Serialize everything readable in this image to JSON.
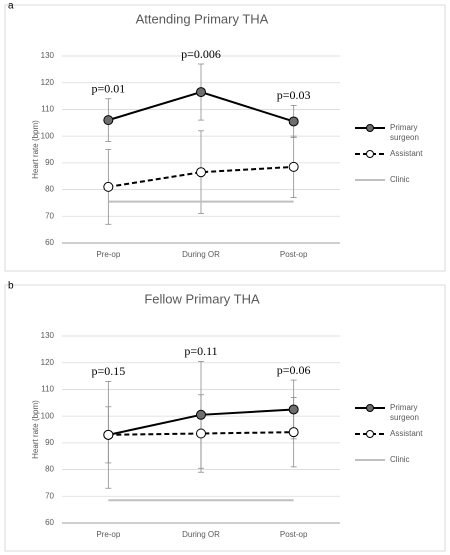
{
  "chart_data": [
    {
      "type": "line",
      "panel": "a",
      "title": "Attending Primary THA",
      "y_label": "Heart rate (bpm)",
      "categories": [
        "Pre-op",
        "During OR",
        "Post-op"
      ],
      "annotations": [
        "p=0.01",
        "p=0.006",
        "p=0.03"
      ],
      "ylim": [
        60,
        130
      ],
      "yticks": [
        60,
        70,
        80,
        90,
        100,
        110,
        120,
        130
      ],
      "grid": true,
      "series": [
        {
          "name": "Primary surgeon",
          "color": "#000000",
          "line_style": "solid",
          "marker_fill": "#6e6e6e",
          "values": [
            106,
            116.5,
            105.5
          ],
          "errors": [
            8,
            10.5,
            6
          ]
        },
        {
          "name": "Assistant",
          "color": "#000000",
          "line_style": "dashed",
          "marker_fill": "#ffffff",
          "values": [
            81,
            86.5,
            88.5
          ],
          "errors": [
            14,
            15.5,
            11.5
          ]
        },
        {
          "name": "Clinic",
          "color": "#bfbfbf",
          "line_style": "solid",
          "values": [
            75.5,
            75.5,
            75.5
          ]
        }
      ]
    },
    {
      "type": "line",
      "panel": "b",
      "title": "Fellow Primary THA",
      "y_label": "Heart rate (bpm)",
      "categories": [
        "Pre-op",
        "During OR",
        "Post-op"
      ],
      "annotations": [
        "p=0.15",
        "p=0.11",
        "p=0.06"
      ],
      "ylim": [
        60,
        130
      ],
      "yticks": [
        60,
        70,
        80,
        90,
        100,
        110,
        120,
        130
      ],
      "grid": true,
      "series": [
        {
          "name": "Primary surgeon",
          "color": "#000000",
          "line_style": "solid",
          "marker_fill": "#6e6e6e",
          "values": [
            93,
            100.5,
            102.5
          ],
          "errors": [
            20,
            20,
            11
          ]
        },
        {
          "name": "Assistant",
          "color": "#000000",
          "line_style": "dashed",
          "marker_fill": "#ffffff",
          "values": [
            93,
            93.5,
            94
          ],
          "errors": [
            10.5,
            14.5,
            13
          ]
        },
        {
          "name": "Clinic",
          "color": "#bfbfbf",
          "line_style": "solid",
          "values": [
            68.5,
            68.5,
            68.5
          ]
        }
      ]
    }
  ]
}
